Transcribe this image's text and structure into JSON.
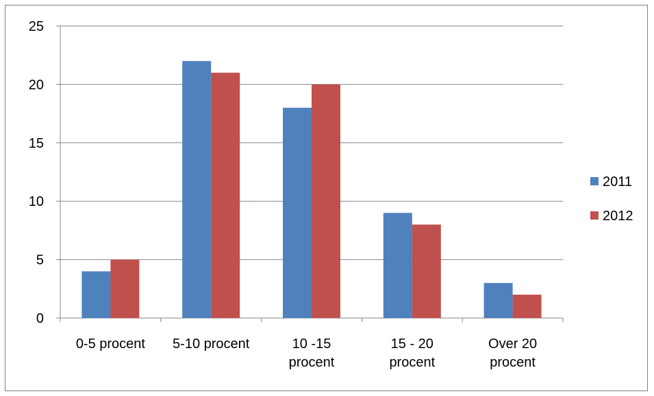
{
  "chart_data": {
    "type": "bar",
    "title": "",
    "xlabel": "",
    "ylabel": "",
    "categories": [
      [
        "0-5 procent"
      ],
      [
        "5-10 procent"
      ],
      [
        "10 -15",
        "procent"
      ],
      [
        "15 - 20",
        "procent"
      ],
      [
        "Over 20",
        "procent"
      ]
    ],
    "series": [
      {
        "name": "2011",
        "color": "#4f81bd",
        "values": [
          4,
          22,
          18,
          9,
          3
        ]
      },
      {
        "name": "2012",
        "color": "#c0504d",
        "values": [
          5,
          21,
          20,
          8,
          2
        ]
      }
    ],
    "ylim": [
      0,
      25
    ],
    "yticks": [
      0,
      5,
      10,
      15,
      20,
      25
    ],
    "grid": true,
    "legend_position": "right"
  }
}
